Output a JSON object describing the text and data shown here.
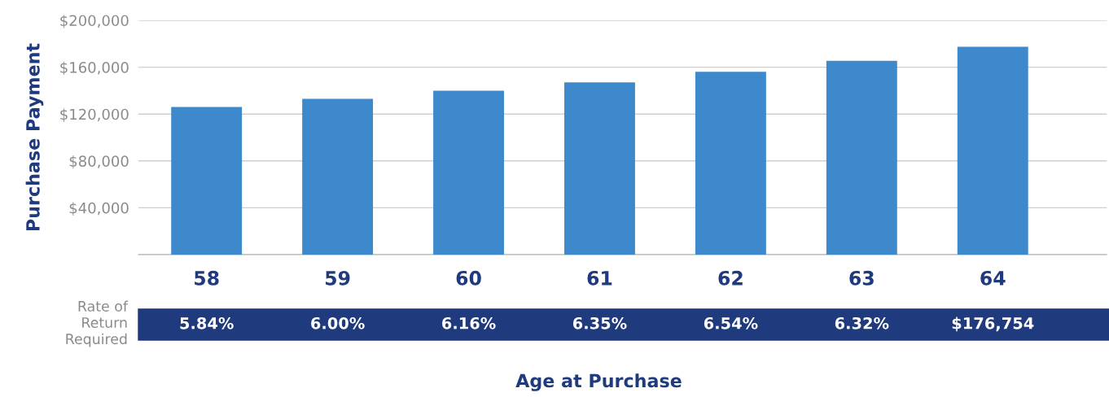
{
  "chart_data": {
    "type": "bar",
    "xlabel": "Age at Purchase",
    "ylabel": "Purchase Payment",
    "categories": [
      "58",
      "59",
      "60",
      "61",
      "62",
      "63",
      "64"
    ],
    "values": [
      126000,
      133000,
      140000,
      147000,
      156000,
      165500,
      177500
    ],
    "color": "#3e89cc",
    "ylim": [
      0,
      200000
    ],
    "yticks": [
      {
        "value": 0,
        "label": null
      },
      {
        "value": 40000,
        "label": "$40,000"
      },
      {
        "value": 80000,
        "label": "$80,000"
      },
      {
        "value": 120000,
        "label": "$120,000"
      },
      {
        "value": 160000,
        "label": "$160,000"
      },
      {
        "value": 200000,
        "label": "$200,000"
      }
    ],
    "grid": "y",
    "legend": false,
    "annotations": [
      "Rate of\nReturn\nRequired",
      "5.84%",
      "6.00%",
      "6.16%",
      "6.35%",
      "6.54%",
      "6.32%",
      "$176,754"
    ]
  }
}
